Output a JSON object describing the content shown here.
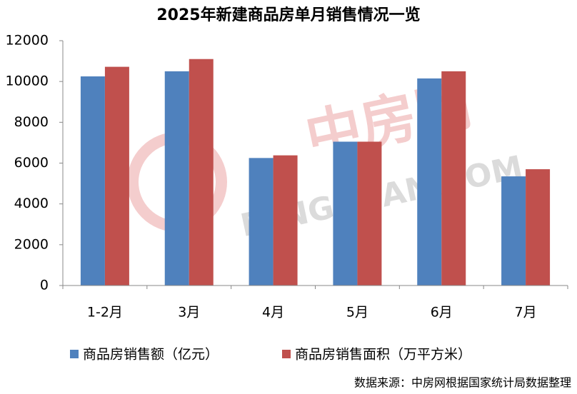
{
  "chart_data": {
    "type": "bar",
    "title": "2025年新建商品房单月销售情况一览",
    "categories": [
      "1-2月",
      "3月",
      "4月",
      "5月",
      "6月",
      "7月"
    ],
    "series": [
      {
        "name": "商品房销售额（亿元）",
        "color": "#4f81bd",
        "values": [
          10250,
          10500,
          6250,
          7050,
          10150,
          5350
        ]
      },
      {
        "name": "商品房销售面积（万平方米）",
        "color": "#c0504d",
        "values": [
          10720,
          11100,
          6380,
          7050,
          10500,
          5700
        ]
      }
    ],
    "ylim": [
      0,
      12000
    ],
    "yticks": [
      0,
      2000,
      4000,
      6000,
      8000,
      10000,
      12000
    ],
    "grid": false,
    "legend": "bottom",
    "watermark": [
      "中房网",
      "FANGCHAN.COM"
    ],
    "source": "数据来源：中房网根据国家统计局数据整理"
  }
}
